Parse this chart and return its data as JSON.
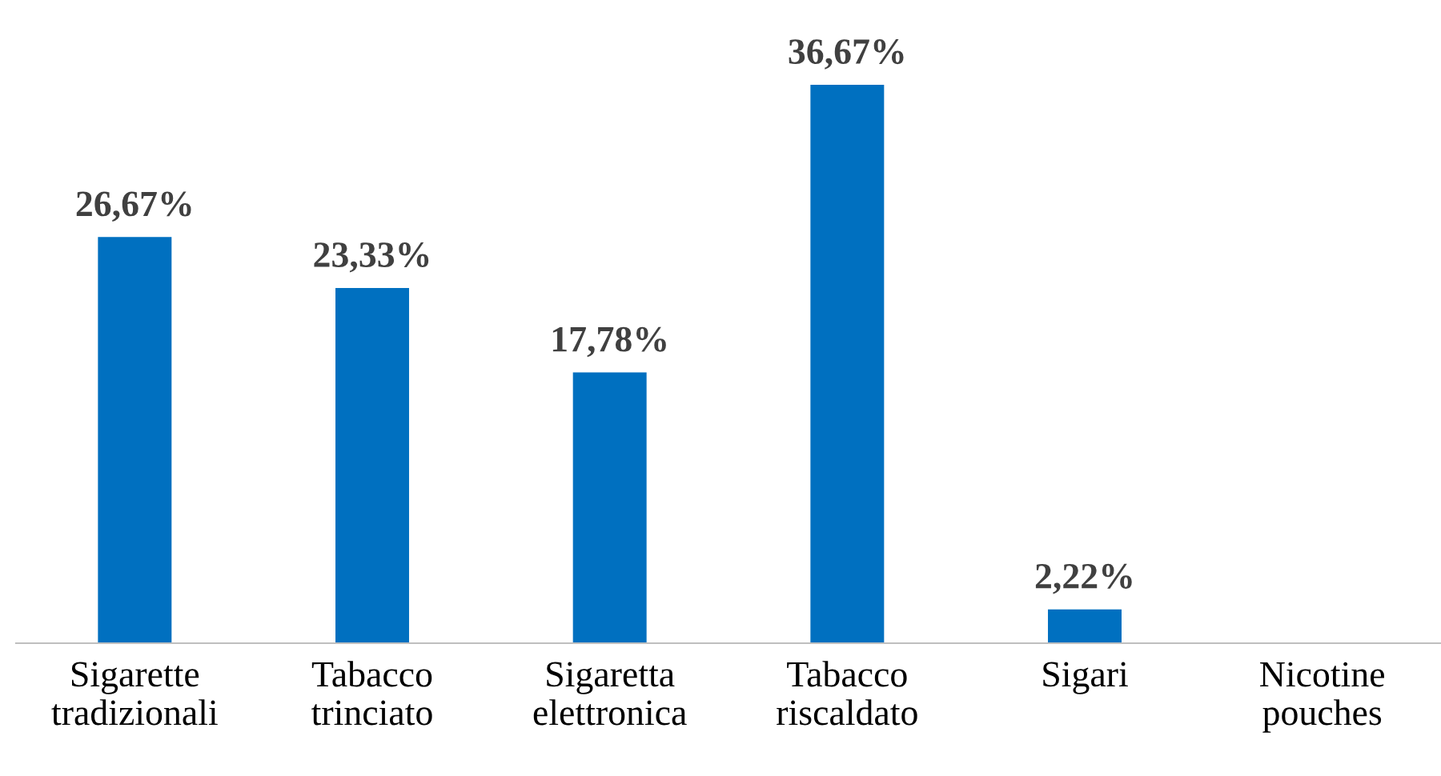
{
  "chart_data": {
    "type": "bar",
    "categories": [
      "Sigarette\ntradizionali",
      "Tabacco\ntrinciato",
      "Sigaretta\nelettronica",
      "Tabacco\nriscaldato",
      "Sigari",
      "Nicotine\npouches"
    ],
    "values": [
      26.67,
      23.33,
      17.78,
      36.67,
      2.22,
      0
    ],
    "value_labels": [
      "26,67%",
      "23,33%",
      "17,78%",
      "36,67%",
      "2,22%",
      null
    ],
    "color": "#0070c0",
    "grid": false,
    "legend": false
  }
}
